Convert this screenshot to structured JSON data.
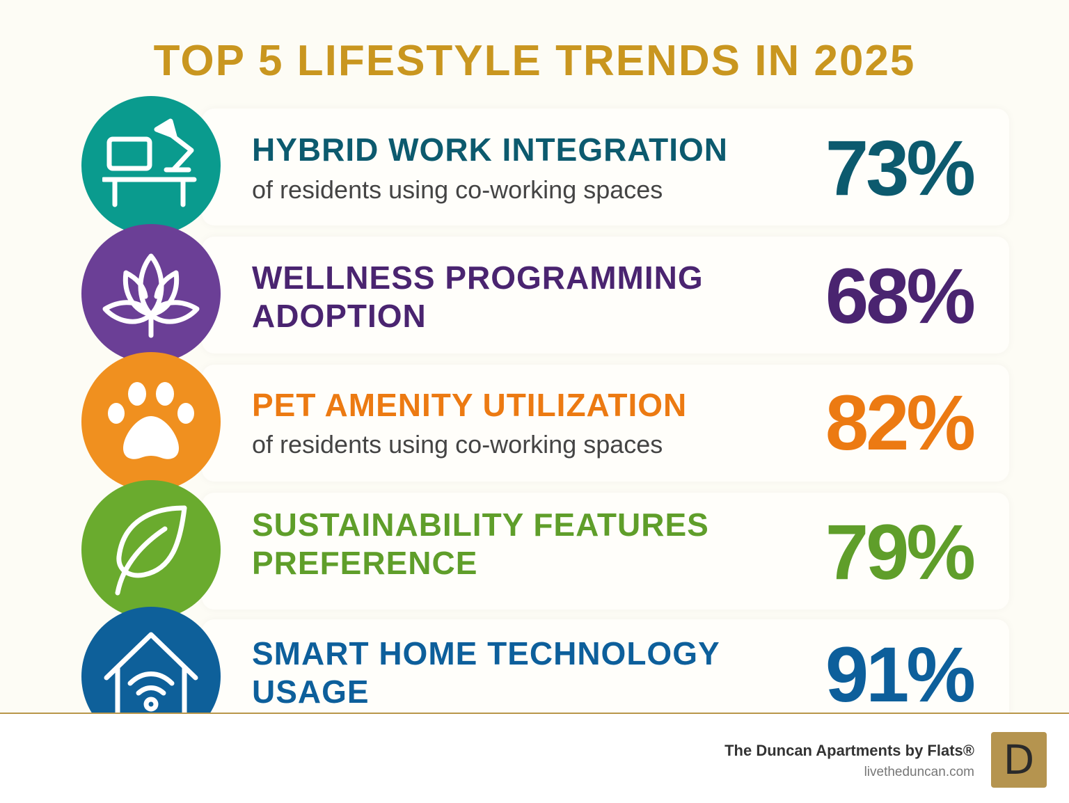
{
  "title": "TOP 5 LIFESTYLE TRENDS IN 2025",
  "trends": [
    {
      "heading": "HYBRID WORK INTEGRATION",
      "heading2": "",
      "subtitle": "of residents using co-working spaces",
      "value": "73%",
      "icon": "desk-lamp-computer-icon",
      "circle_color": "#0a9b8e",
      "text_color": "#0c5a6e"
    },
    {
      "heading": "WELLNESS PROGRAMMING",
      "heading2": "ADOPTION",
      "subtitle": "",
      "value": "68%",
      "icon": "lotus-icon",
      "circle_color": "#6b3f96",
      "text_color": "#4a2470"
    },
    {
      "heading": "PET AMENITY UTILIZATION",
      "heading2": "",
      "subtitle": "of residents using co-working spaces",
      "value": "82%",
      "icon": "paw-icon",
      "circle_color": "#f0901f",
      "text_color": "#ec7a12"
    },
    {
      "heading": "SUSTAINABILITY FEATURES",
      "heading2": "PREFERENCE",
      "subtitle": "",
      "value": "79%",
      "icon": "leaf-icon",
      "circle_color": "#6aab2e",
      "text_color": "#5f9e2a"
    },
    {
      "heading": "SMART HOME TECHNOLOGY",
      "heading2": "USAGE",
      "subtitle": "",
      "value": "91%",
      "icon": "smart-home-wifi-icon",
      "circle_color": "#0e609a",
      "text_color": "#0d5f9b"
    }
  ],
  "footer": {
    "brand": "The Duncan Apartments by Flats®",
    "website": "livetheduncan.com",
    "logo_letter": "D"
  }
}
